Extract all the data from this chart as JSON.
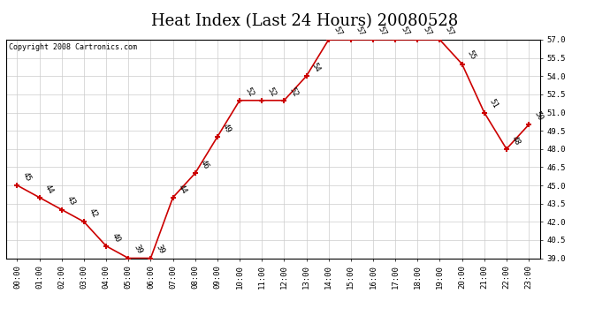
{
  "title": "Heat Index (Last 24 Hours) 20080528",
  "copyright": "Copyright 2008 Cartronics.com",
  "hours": [
    0,
    1,
    2,
    3,
    4,
    5,
    6,
    7,
    8,
    9,
    10,
    11,
    12,
    13,
    14,
    15,
    16,
    17,
    18,
    19,
    20,
    21,
    22,
    23
  ],
  "values": [
    45,
    44,
    43,
    42,
    40,
    39,
    39,
    44,
    46,
    49,
    52,
    52,
    52,
    54,
    57,
    57,
    57,
    57,
    57,
    57,
    55,
    51,
    48,
    50
  ],
  "xlabels": [
    "00:00",
    "01:00",
    "02:00",
    "03:00",
    "04:00",
    "05:00",
    "06:00",
    "07:00",
    "08:00",
    "09:00",
    "10:00",
    "11:00",
    "12:00",
    "13:00",
    "14:00",
    "15:00",
    "16:00",
    "17:00",
    "18:00",
    "19:00",
    "20:00",
    "21:00",
    "22:00",
    "23:00"
  ],
  "ylim": [
    39.0,
    57.0
  ],
  "yticks": [
    39.0,
    40.5,
    42.0,
    43.5,
    45.0,
    46.5,
    48.0,
    49.5,
    51.0,
    52.5,
    54.0,
    55.5,
    57.0
  ],
  "line_color": "#cc0000",
  "marker_color": "#cc0000",
  "bg_color": "#ffffff",
  "grid_color": "#cccccc",
  "title_fontsize": 13,
  "label_fontsize": 6.5,
  "annot_fontsize": 6.5,
  "copyright_fontsize": 6
}
